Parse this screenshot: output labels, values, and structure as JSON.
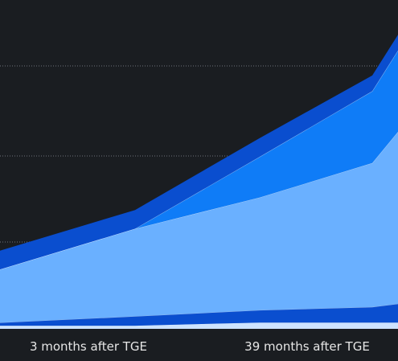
{
  "chart_data": {
    "type": "area",
    "stacked": true,
    "title": "",
    "xlabel": "",
    "ylabel": "",
    "x": [
      "",
      "3 months after TGE",
      "",
      "39 months after TGE",
      ""
    ],
    "tick_labels": [
      "3 months after TGE",
      "39 months after TGE"
    ],
    "ylim": [
      0,
      100
    ],
    "grid": "horizontal-dotted",
    "legend": "none",
    "series": [
      {
        "values": [
          1,
          1,
          2,
          2,
          2
        ],
        "color": "#cde3ff"
      },
      {
        "values": [
          1,
          3,
          4,
          5,
          6
        ],
        "color": "#0a4ecf"
      },
      {
        "values": [
          17,
          28,
          36,
          46,
          55
        ],
        "color": "#6ab0ff"
      },
      {
        "values": [
          0,
          0,
          13,
          23,
          26
        ],
        "color": "#0f7cf7"
      },
      {
        "values": [
          6,
          6,
          6,
          5,
          5
        ],
        "color": "#0a4ecf"
      }
    ],
    "background": "#1a1d21",
    "gridline_color": "#6f747b",
    "divider_color": "#d9e9ff"
  }
}
